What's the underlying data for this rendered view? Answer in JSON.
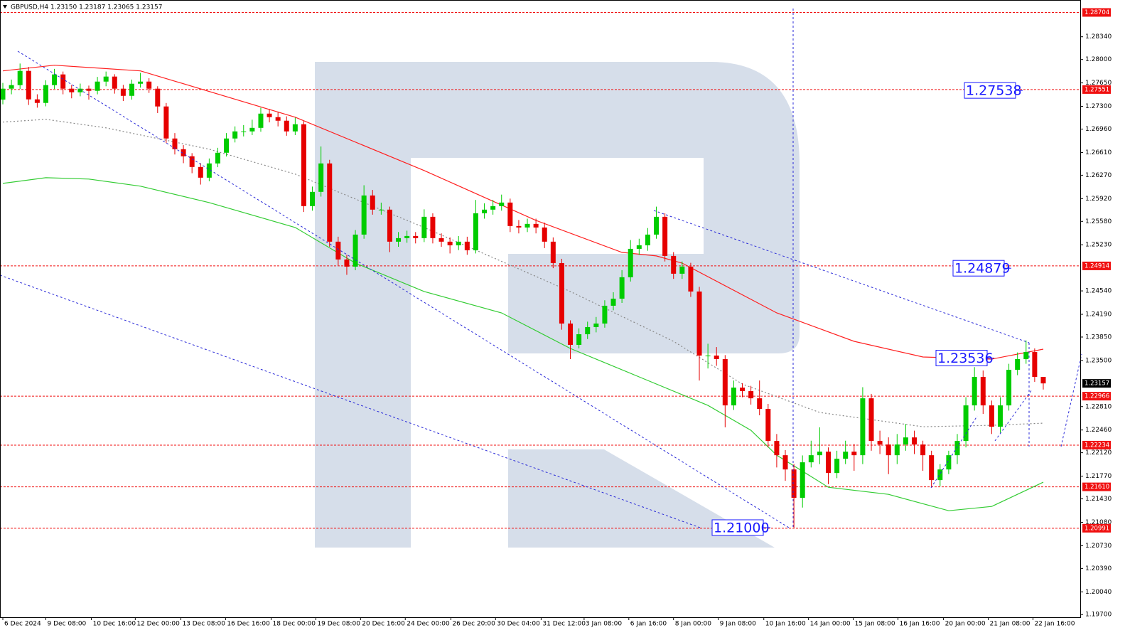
{
  "chart_data": {
    "type": "candlestick",
    "title": "GBPUSD,H4  1.23150 1.23187 1.23065 1.23157",
    "up_color": "#00cc00",
    "down_color": "#e60000",
    "first_open": 1.274,
    "close": [
      1.27564,
      1.27617,
      1.2783,
      1.27404,
      1.27351,
      1.27617,
      1.27777,
      1.27564,
      1.2751,
      1.27564,
      1.27532,
      1.2767,
      1.27745,
      1.27564,
      1.27457,
      1.27638,
      1.2767,
      1.27564,
      1.27298,
      1.26819,
      1.26659,
      1.26553,
      1.26393,
      1.26233,
      1.26446,
      1.26606,
      1.26819,
      1.26925,
      1.26925,
      1.26978,
      1.27191,
      1.27138,
      1.27085,
      1.26925,
      1.27032,
      1.25808,
      1.26021,
      1.26446,
      1.25276,
      1.2501,
      1.24903,
      1.25382,
      1.25967,
      1.25755,
      1.25755,
      1.25276,
      1.25329,
      1.25361,
      1.25329,
      1.25648,
      1.25329,
      1.25276,
      1.25222,
      1.25276,
      1.25148,
      1.25701,
      1.25755,
      1.25808,
      1.25861,
      1.2551,
      1.25488,
      1.25542,
      1.25488,
      1.25276,
      1.24956,
      1.24052,
      1.23733,
      1.23892,
      1.23999,
      1.24052,
      1.24318,
      1.24424,
      1.24744,
      1.25169,
      1.25222,
      1.25382,
      1.25648,
      1.25063,
      1.24797,
      1.24903,
      1.24531,
      1.23573,
      1.23573,
      1.2352,
      1.22828,
      1.23094,
      1.23041,
      1.22934,
      1.22775,
      1.22296,
      1.22083,
      1.2187,
      1.21445,
      1.21977,
      1.22083,
      1.22136,
      1.21817,
      1.2203,
      1.22136,
      1.22083,
      1.22934,
      1.22296,
      1.22243,
      1.22083,
      1.22243,
      1.22349,
      1.22243,
      1.22083,
      1.21711,
      1.2187,
      1.22083,
      1.22296,
      1.22828,
      1.23254,
      1.22828,
      1.22509,
      1.22828,
      1.2336,
      1.2352,
      1.23626,
      1.23254,
      1.23157
    ],
    "high": [
      1.2765,
      1.277,
      1.2794,
      1.2789,
      1.2748,
      1.2769,
      1.2786,
      1.2782,
      1.2762,
      1.2764,
      1.2761,
      1.2774,
      1.2782,
      1.2778,
      1.2762,
      1.277,
      1.278,
      1.2772,
      1.276,
      1.2735,
      1.269,
      1.2672,
      1.266,
      1.2645,
      1.2652,
      1.2668,
      1.269,
      1.27,
      1.2702,
      1.271,
      1.2728,
      1.2726,
      1.2722,
      1.2715,
      1.2713,
      1.2708,
      1.261,
      1.267,
      1.265,
      1.2535,
      1.2508,
      1.2545,
      1.2612,
      1.2605,
      1.2586,
      1.258,
      1.2542,
      1.2544,
      1.2542,
      1.2576,
      1.257,
      1.254,
      1.2534,
      1.2536,
      1.2535,
      1.259,
      1.2585,
      1.259,
      1.2598,
      1.2592,
      1.256,
      1.2562,
      1.2562,
      1.2556,
      1.2534,
      1.2502,
      1.241,
      1.2398,
      1.2408,
      1.2415,
      1.244,
      1.2452,
      1.2485,
      1.253,
      1.2532,
      1.2548,
      1.258,
      1.257,
      1.2512,
      1.2498,
      1.2496,
      1.246,
      1.2375,
      1.237,
      1.2358,
      1.232,
      1.2316,
      1.2312,
      1.232,
      1.2285,
      1.224,
      1.2216,
      1.2195,
      1.2208,
      1.223,
      1.225,
      1.222,
      1.2215,
      1.223,
      1.2225,
      1.231,
      1.23,
      1.2245,
      1.2235,
      1.224,
      1.2255,
      1.2245,
      1.223,
      1.2215,
      1.2195,
      1.2215,
      1.224,
      1.2295,
      1.234,
      1.2335,
      1.229,
      1.2295,
      1.2345,
      1.2362,
      1.238,
      1.2368,
      1.23187
    ],
    "low": [
      1.2733,
      1.2748,
      1.2756,
      1.2732,
      1.2728,
      1.273,
      1.2756,
      1.2748,
      1.2742,
      1.2745,
      1.274,
      1.2748,
      1.276,
      1.2749,
      1.2738,
      1.274,
      1.2758,
      1.275,
      1.272,
      1.2675,
      1.2658,
      1.2645,
      1.263,
      1.2613,
      1.2618,
      1.2639,
      1.2655,
      1.2676,
      1.2685,
      1.2687,
      1.2692,
      1.2706,
      1.27,
      1.2686,
      1.2687,
      1.2572,
      1.2574,
      1.2595,
      1.252,
      1.2492,
      1.2478,
      1.2485,
      1.2532,
      1.2568,
      1.2568,
      1.2512,
      1.252,
      1.2526,
      1.2525,
      1.2527,
      1.2525,
      1.252,
      1.251,
      1.2515,
      1.2508,
      1.251,
      1.2562,
      1.2568,
      1.2574,
      1.2542,
      1.254,
      1.2542,
      1.254,
      1.2518,
      1.2488,
      1.2396,
      1.2352,
      1.2368,
      1.2382,
      1.2392,
      1.2399,
      1.2425,
      1.2436,
      1.2468,
      1.2508,
      1.2514,
      1.2532,
      1.2498,
      1.2472,
      1.2472,
      1.2445,
      1.232,
      1.2338,
      1.2342,
      1.225,
      1.2276,
      1.2295,
      1.2284,
      1.2268,
      1.222,
      1.219,
      1.217,
      1.20991,
      1.213,
      1.219,
      1.2195,
      1.2165,
      1.2174,
      1.2195,
      1.2185,
      1.2195,
      1.2215,
      1.221,
      1.218,
      1.2195,
      1.2215,
      1.221,
      1.2185,
      1.2161,
      1.2162,
      1.218,
      1.2195,
      1.222,
      1.2275,
      1.227,
      1.224,
      1.2242,
      1.2275,
      1.2328,
      1.2345,
      1.2318,
      1.23065
    ],
    "xlim": [
      -0.33,
      125.3
    ],
    "ylim": [
      1.1966,
      1.2889
    ],
    "xticks": [
      {
        "value": 0,
        "label": "6 Dec 2024"
      },
      {
        "value": 5,
        "label": "9 Dec 08:00"
      },
      {
        "value": 10.3,
        "label": "10 Dec 16:00"
      },
      {
        "value": 15.4,
        "label": "12 Dec 00:00"
      },
      {
        "value": 20.7,
        "label": "13 Dec 08:00"
      },
      {
        "value": 25.9,
        "label": "16 Dec 16:00"
      },
      {
        "value": 31.2,
        "label": "18 Dec 00:00"
      },
      {
        "value": 36.4,
        "label": "19 Dec 08:00"
      },
      {
        "value": 41.6,
        "label": "20 Dec 16:00"
      },
      {
        "value": 46.8,
        "label": "24 Dec 00:00"
      },
      {
        "value": 52.1,
        "label": "26 Dec 20:00"
      },
      {
        "value": 57.3,
        "label": "30 Dec 04:00"
      },
      {
        "value": 62.6,
        "label": "31 Dec 12:00"
      },
      {
        "value": 67.6,
        "label": "3 Jan 08:00"
      },
      {
        "value": 72.8,
        "label": "6 Jan 16:00"
      },
      {
        "value": 78,
        "label": "8 Jan 00:00"
      },
      {
        "value": 83.2,
        "label": "9 Jan 08:00"
      },
      {
        "value": 88.5,
        "label": "10 Jan 16:00"
      },
      {
        "value": 93.7,
        "label": "14 Jan 00:00"
      },
      {
        "value": 98.9,
        "label": "15 Jan 08:00"
      },
      {
        "value": 104.1,
        "label": "16 Jan 16:00"
      },
      {
        "value": 109.4,
        "label": "20 Jan 00:00"
      },
      {
        "value": 114.6,
        "label": "21 Jan 08:00"
      },
      {
        "value": 119.8,
        "label": "22 Jan 16:00"
      }
    ],
    "yticks": [
      {
        "value": 1.2834,
        "label": "1.28340"
      },
      {
        "value": 1.28,
        "label": "1.28000"
      },
      {
        "value": 1.2765,
        "label": "1.27650"
      },
      {
        "value": 1.273,
        "label": "1.27300"
      },
      {
        "value": 1.2696,
        "label": "1.26960"
      },
      {
        "value": 1.2661,
        "label": "1.26610"
      },
      {
        "value": 1.2627,
        "label": "1.26270"
      },
      {
        "value": 1.2592,
        "label": "1.25920"
      },
      {
        "value": 1.2558,
        "label": "1.25580"
      },
      {
        "value": 1.2523,
        "label": "1.25230"
      },
      {
        "value": 1.2454,
        "label": "1.24540"
      },
      {
        "value": 1.2419,
        "label": "1.24190"
      },
      {
        "value": 1.2385,
        "label": "1.23850"
      },
      {
        "value": 1.235,
        "label": "1.23500"
      },
      {
        "value": 1.2281,
        "label": "1.22810"
      },
      {
        "value": 1.2246,
        "label": "1.22460"
      },
      {
        "value": 1.2212,
        "label": "1.22120"
      },
      {
        "value": 1.2177,
        "label": "1.21770"
      },
      {
        "value": 1.2143,
        "label": "1.21430"
      },
      {
        "value": 1.2108,
        "label": "1.21080"
      },
      {
        "value": 1.2073,
        "label": "1.20730"
      },
      {
        "value": 1.2039,
        "label": "1.20390"
      },
      {
        "value": 1.2004,
        "label": "1.20040"
      },
      {
        "value": 1.197,
        "label": "1.19700"
      }
    ],
    "moving_averages": [
      {
        "color": "#ff2020",
        "dashed": false,
        "x": [
          0,
          6,
          16,
          34,
          49,
          62,
          72,
          76,
          79,
          90,
          99,
          107,
          115,
          121
        ],
        "values": [
          1.2783,
          1.27915,
          1.2783,
          1.27138,
          1.2634,
          1.25595,
          1.25116,
          1.25063,
          1.24956,
          1.24211,
          1.23786,
          1.23552,
          1.2352,
          1.23669
        ]
      },
      {
        "color": "#33cc33",
        "dashed": false,
        "x": [
          0,
          5,
          10,
          16,
          24,
          34,
          41,
          49,
          58,
          66,
          74,
          82,
          87,
          90,
          96,
          103,
          110,
          115,
          121
        ],
        "values": [
          1.26148,
          1.26233,
          1.26212,
          1.26106,
          1.25861,
          1.25488,
          1.24956,
          1.24531,
          1.24211,
          1.23679,
          1.23254,
          1.22828,
          1.22456,
          1.22083,
          1.21604,
          1.21498,
          1.21253,
          1.21317,
          1.21679
        ]
      },
      {
        "color": "#888888",
        "dashed": true,
        "x": [
          0,
          5,
          12,
          24,
          34,
          49,
          66,
          78,
          86,
          95,
          107,
          115,
          121
        ],
        "values": [
          1.27064,
          1.27106,
          1.26978,
          1.26659,
          1.26287,
          1.25488,
          1.24531,
          1.23786,
          1.23147,
          1.22722,
          1.22509,
          1.2253,
          1.22562
        ]
      }
    ],
    "level_color": "#f01010",
    "price_levels": [
      1.28704,
      1.27551,
      1.24914,
      1.22966,
      1.22234,
      {
        "value": 1.2161,
        "label": "1.21610"
      },
      1.20991
    ],
    "current_price": 1.23157,
    "annotations": [
      1.27538,
      1.24879,
      1.23536,
      {
        "value": 1.21,
        "label": "1.21000"
      }
    ]
  }
}
